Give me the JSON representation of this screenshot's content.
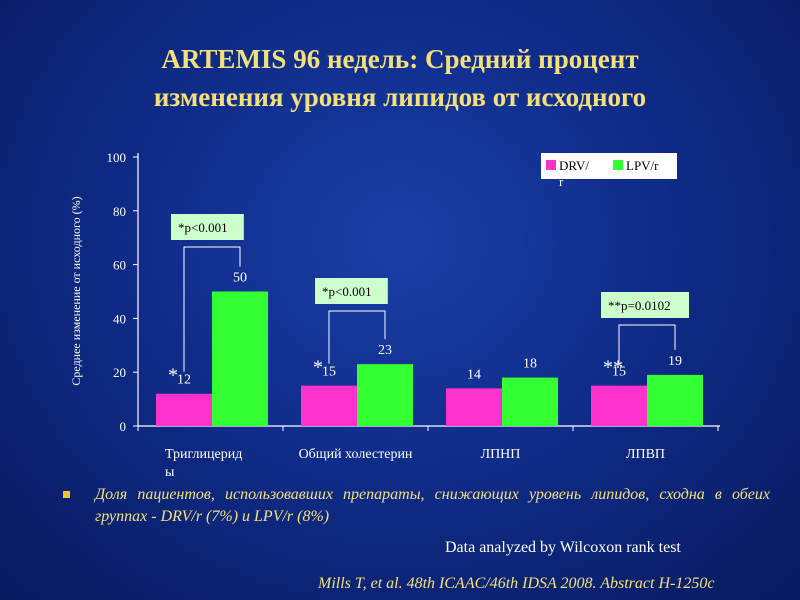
{
  "title_line1": "ARTEMIS 96 недель: Средний процент",
  "title_line2": "изменения уровня липидов от исходного",
  "chart_data": {
    "type": "bar",
    "ylabel": "Среднее изменение от исходного (%)",
    "ylim": [
      0,
      100
    ],
    "yticks": [
      0,
      20,
      40,
      60,
      80,
      100
    ],
    "categories": [
      "Триглицериды",
      "Общий холестерин",
      "ЛПНП",
      "ЛПВП"
    ],
    "category_labels": [
      [
        "Триглицерид",
        "ы"
      ],
      [
        "Общий холестерин"
      ],
      [
        "ЛПНП"
      ],
      [
        "ЛПВП"
      ]
    ],
    "series": [
      {
        "name": "DRV/r",
        "color": "#ff33cc",
        "values": [
          12,
          15,
          14,
          15
        ]
      },
      {
        "name": "LPV/r",
        "color": "#33ff33",
        "values": [
          50,
          23,
          18,
          19
        ]
      }
    ],
    "legend": {
      "position": "top-right",
      "labels": [
        [
          "DRV/",
          "r"
        ],
        [
          "LPV/r"
        ]
      ]
    },
    "significance": [
      {
        "category": 0,
        "label": "*p<0.001",
        "marker": "*"
      },
      {
        "category": 1,
        "label": "*p<0.001",
        "marker": "*"
      },
      {
        "category": 3,
        "label": "**p=0.0102",
        "marker": "**"
      }
    ],
    "grid": false
  },
  "bullet_text": "Доля пациентов, использовавших препараты, снижающих уровень липидов, сходна в обеих группах - DRV/r (7%) и LPV/r (8%)",
  "footnote": "Data analyzed by Wilcoxon rank test",
  "citation": "Mills T, et al. 48th ICAAC/46th IDSA 2008. Abstract H-1250c",
  "colors": {
    "title": "#f2e07a",
    "drv": "#ff33cc",
    "lpv": "#33ff33",
    "annotation_box": "#ccffcc",
    "background": "#102c8a"
  }
}
